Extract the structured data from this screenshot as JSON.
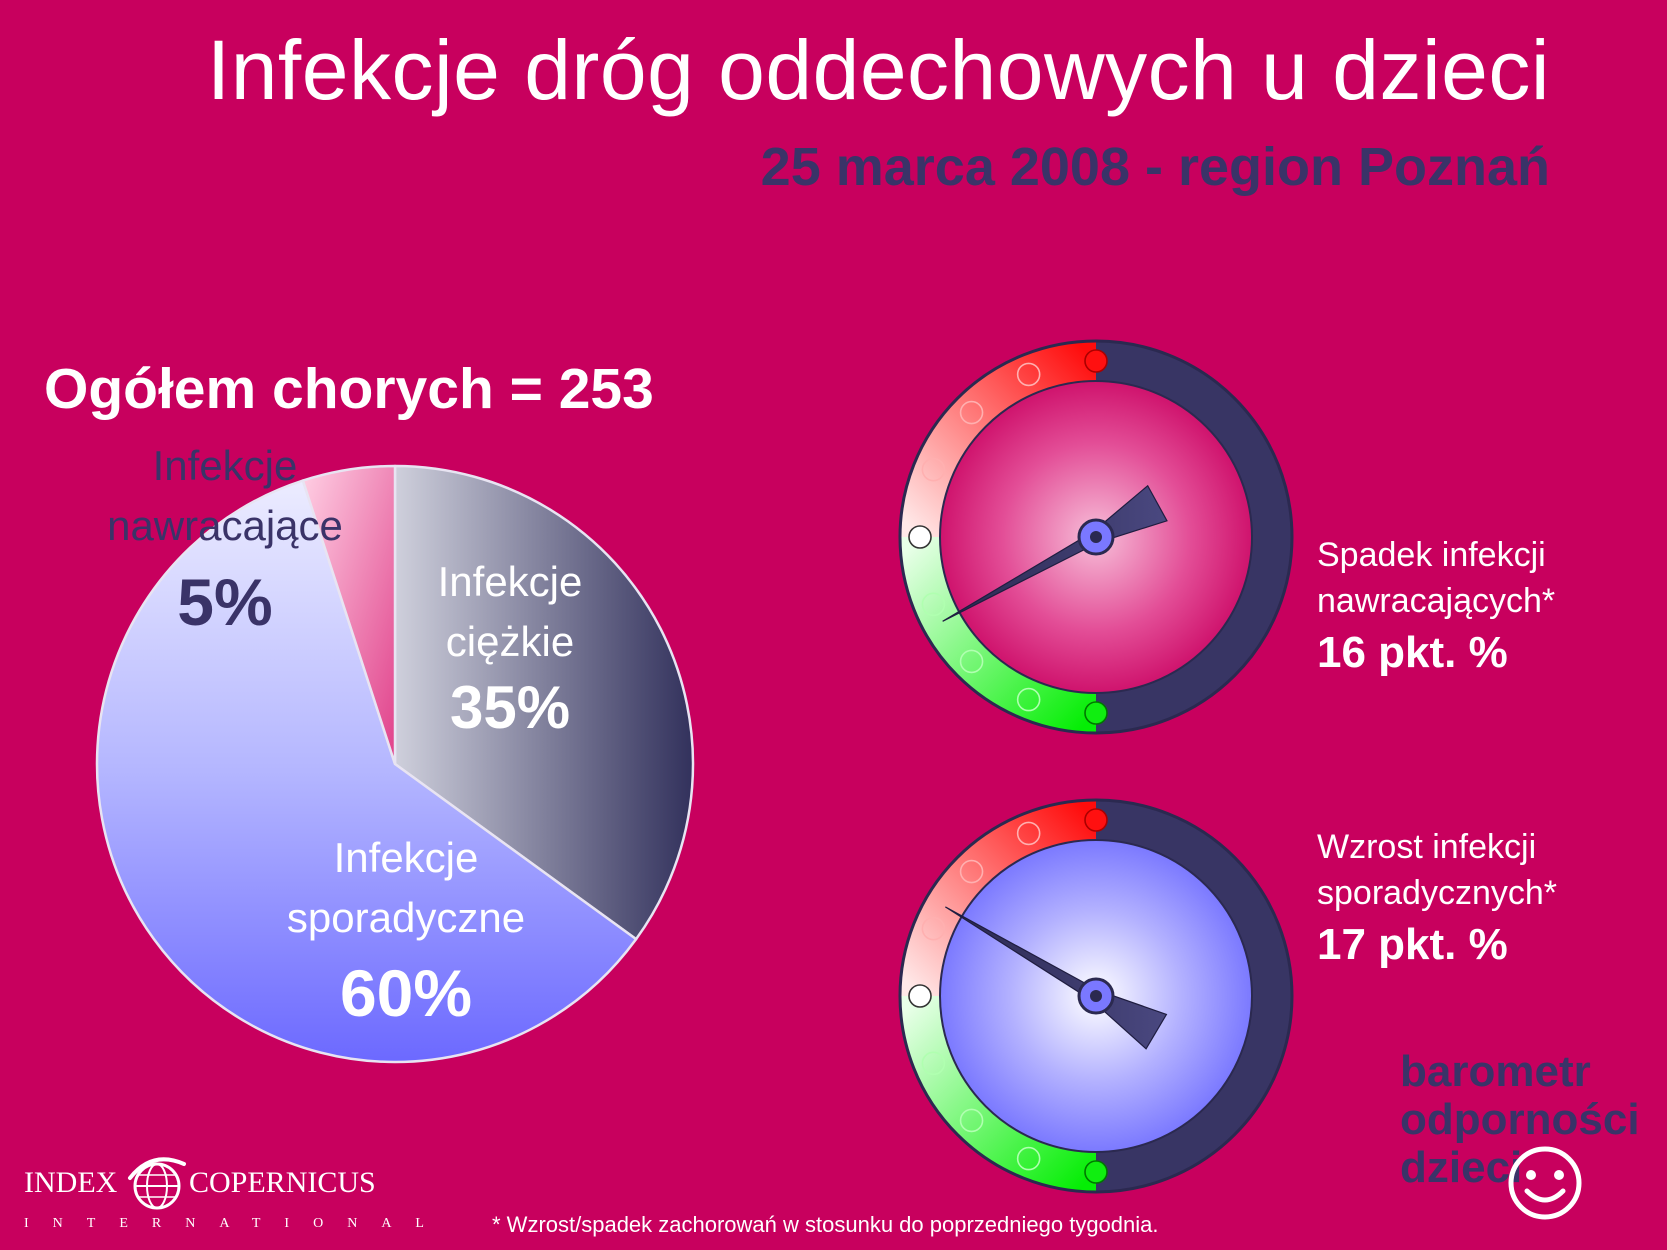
{
  "header": {
    "title": "Infekcje dróg oddechowych u dzieci",
    "subtitle": "25 marca 2008 - region Poznań"
  },
  "total_label": "Ogółem chorych = 253",
  "chart_data": [
    {
      "type": "pie",
      "title": "Ogółem chorych = 253",
      "slices": [
        {
          "label_line1": "Infekcje",
          "label_line2": "ciężkie",
          "pct_label": "35%",
          "value": 35
        },
        {
          "label_line1": "Infekcje",
          "label_line2": "sporadyczne",
          "pct_label": "60%",
          "value": 60
        },
        {
          "label_line1": "Infekcje",
          "label_line2": "nawracające",
          "pct_label": "5%",
          "value": 5
        }
      ]
    },
    {
      "type": "gauge",
      "label_line1": "Spadek infekcji",
      "label_line2": "nawracających*",
      "value_label": "16 pkt. %",
      "value": -16,
      "face_color": "#d6136f"
    },
    {
      "type": "gauge",
      "label_line1": "Wzrost infekcji",
      "label_line2": "sporadycznych*",
      "value_label": "17 pkt. %",
      "value": 17,
      "face_color": "#7b79ff"
    }
  ],
  "footnote": "* Wzrost/spadek zachorowań w stosunku do poprzedniego tygodnia.",
  "brand": {
    "line1": "barometr",
    "line2": "odporności",
    "line3": "dzieci"
  },
  "logo": {
    "word1": "INDEX",
    "word2": "COPERNICUS",
    "word3": "INTERNATIONAL"
  },
  "colors": {
    "background": "#c8005e",
    "dark": "#3a3368",
    "severe": "#363560",
    "sporadic": "#7b7bff",
    "recurrent": "#e56aa3",
    "gauge_red": "#ff1010",
    "gauge_green": "#10ee10"
  }
}
